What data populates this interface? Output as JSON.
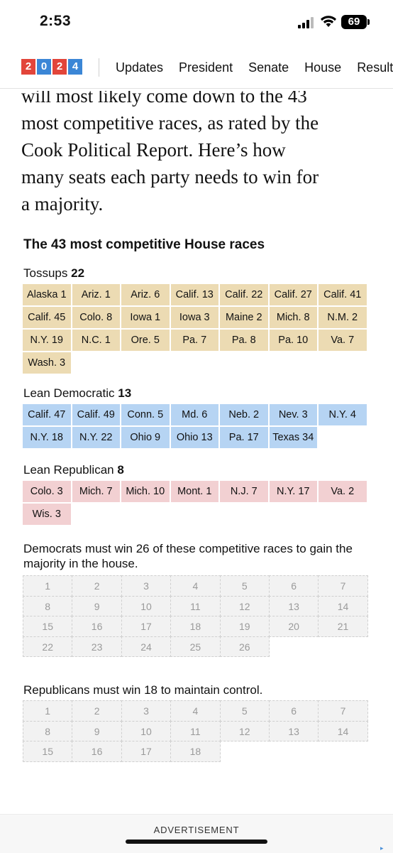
{
  "status_bar": {
    "time": "2:53",
    "battery": "69"
  },
  "nav": {
    "logo_digits": [
      "2",
      "0",
      "2",
      "4"
    ],
    "links": [
      "Updates",
      "President",
      "Senate",
      "House",
      "Results"
    ]
  },
  "article": {
    "lines": [
      "will most likely come down to the 43",
      "most competitive races, as rated by the",
      "Cook Political Report. Here’s how",
      "many seats each party needs to win for",
      "a majority."
    ]
  },
  "graphic": {
    "title": "The 43 most competitive House races",
    "groups": [
      {
        "label": "Tossups",
        "count": "22",
        "races": [
          "Alaska 1",
          "Ariz. 1",
          "Ariz. 6",
          "Calif. 13",
          "Calif. 22",
          "Calif. 27",
          "Calif. 41",
          "Calif. 45",
          "Colo. 8",
          "Iowa 1",
          "Iowa 3",
          "Maine 2",
          "Mich. 8",
          "N.M. 2",
          "N.Y. 19",
          "N.C. 1",
          "Ore. 5",
          "Pa. 7",
          "Pa. 8",
          "Pa. 10",
          "Va. 7",
          "Wash. 3"
        ]
      },
      {
        "label": "Lean Democratic",
        "count": "13",
        "races": [
          "Calif. 47",
          "Calif. 49",
          "Conn. 5",
          "Md. 6",
          "Neb. 2",
          "Nev. 3",
          "N.Y. 4",
          "N.Y. 18",
          "N.Y. 22",
          "Ohio 9",
          "Ohio 13",
          "Pa. 17",
          "Texas 34"
        ]
      },
      {
        "label": "Lean Republican",
        "count": "8",
        "races": [
          "Colo. 3",
          "Mich. 7",
          "Mich. 10",
          "Mont. 1",
          "N.J. 7",
          "N.Y. 17",
          "Va. 2",
          "Wis. 3"
        ]
      }
    ],
    "democrats": {
      "text": "Democrats must win 26 of these competitive races to gain the majority in the house.",
      "slots": 26
    },
    "republicans": {
      "text": "Republicans must win 18 to maintain control.",
      "slots": 18
    }
  },
  "advertisement": {
    "label": "ADVERTISEMENT"
  },
  "colors": {
    "tossup": "#ecdbb3",
    "lean_dem": "#b6d4f3",
    "lean_rep": "#f2d0d2",
    "logo_red": "#e2453a",
    "logo_blue": "#3b86d6"
  }
}
